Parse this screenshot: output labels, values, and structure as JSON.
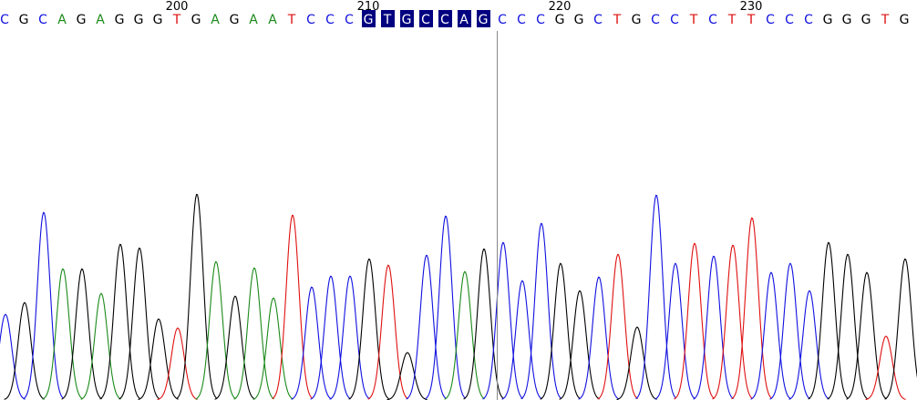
{
  "chart_data": {
    "type": "chromatogram",
    "position_labels": [
      200,
      210,
      220,
      230
    ],
    "bases": [
      "C",
      "G",
      "C",
      "A",
      "G",
      "A",
      "G",
      "G",
      "G",
      "T",
      "G",
      "A",
      "G",
      "A",
      "A",
      "T",
      "C",
      "C",
      "C",
      "G",
      "T",
      "G",
      "C",
      "C",
      "A",
      "G",
      "C",
      "C",
      "C",
      "G",
      "G",
      "C",
      "T",
      "G",
      "C",
      "C",
      "T",
      "C",
      "T",
      "T",
      "C",
      "C",
      "C",
      "G",
      "G",
      "G",
      "T",
      "G"
    ],
    "signal": [
      94,
      107,
      206,
      144,
      144,
      117,
      171,
      167,
      89,
      79,
      226,
      152,
      114,
      145,
      112,
      203,
      124,
      136,
      136,
      155,
      148,
      52,
      159,
      202,
      141,
      166,
      173,
      131,
      194,
      150,
      120,
      135,
      160,
      80,
      225,
      150,
      172,
      158,
      170,
      200,
      140,
      150,
      120,
      173,
      160,
      140,
      70,
      155
    ],
    "highlight": [
      19,
      25
    ],
    "colors": {
      "A": "#1a8a1a",
      "C": "#1010e0",
      "G": "#000000",
      "T": "#e01010"
    },
    "highlight_color": "#000080"
  }
}
